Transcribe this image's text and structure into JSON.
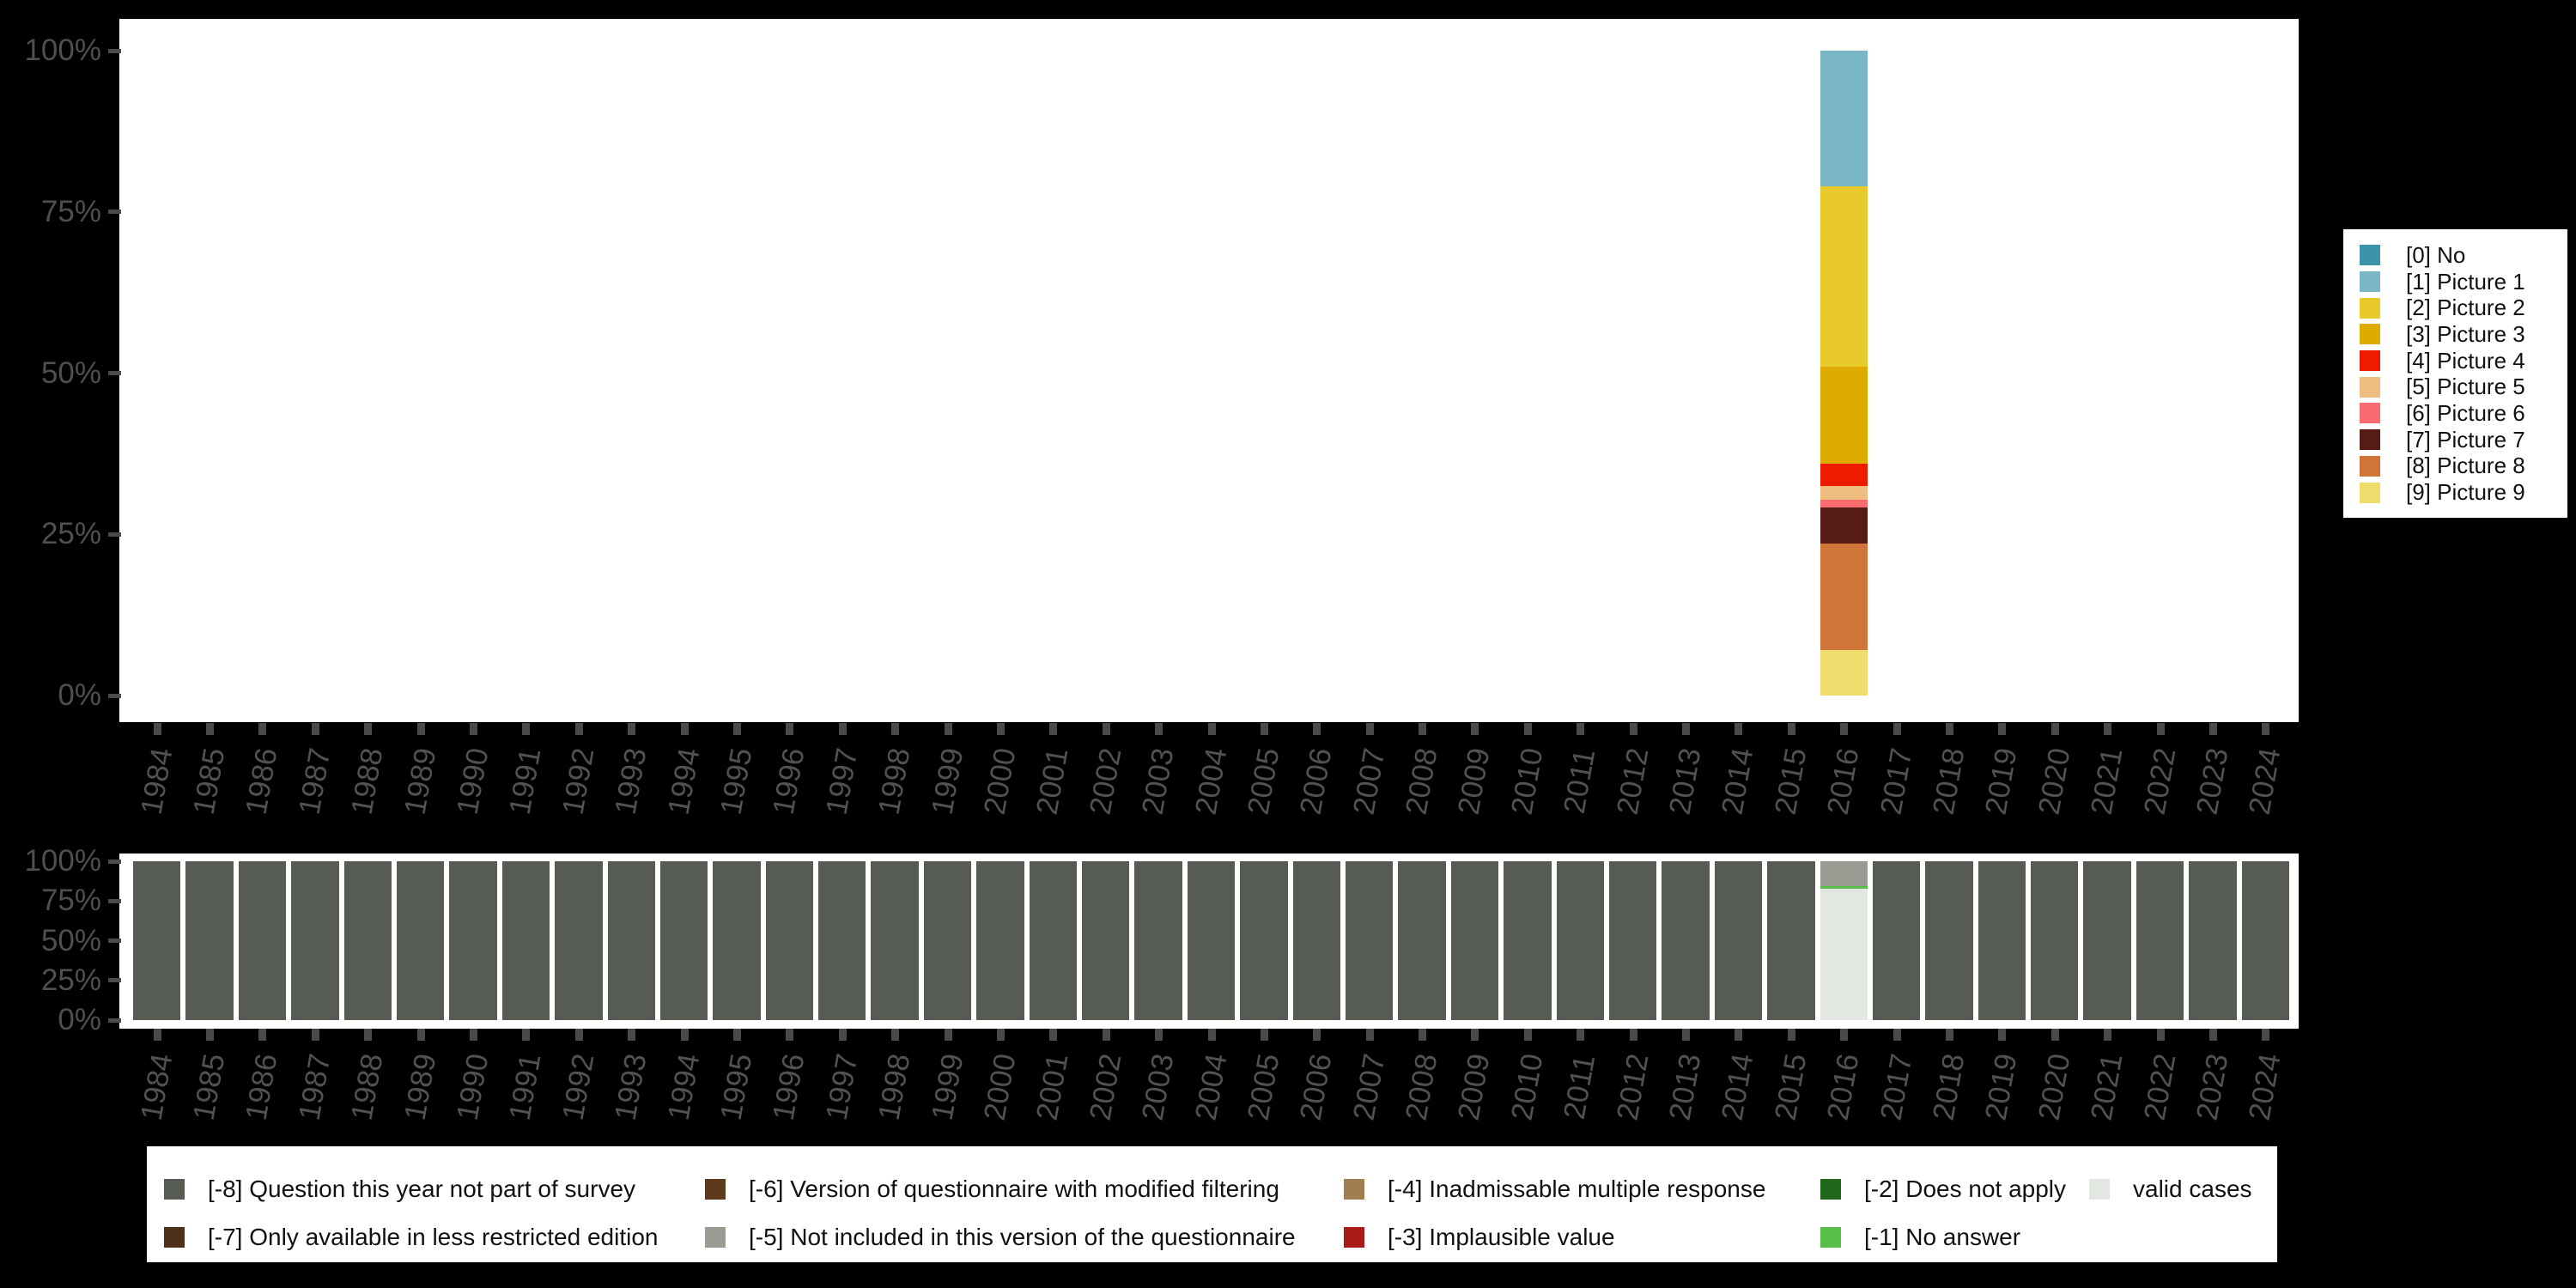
{
  "background_color": "#000000",
  "axis": {
    "label_color": "#4f4f4f",
    "tick_color": "#4a4a4a",
    "y_tick_labels": [
      "100%",
      "75%",
      "50%",
      "25%",
      "0%"
    ],
    "years": [
      "1984",
      "1985",
      "1986",
      "1987",
      "1988",
      "1989",
      "1990",
      "1991",
      "1992",
      "1993",
      "1994",
      "1995",
      "1996",
      "1997",
      "1998",
      "1999",
      "2000",
      "2001",
      "2002",
      "2003",
      "2004",
      "2005",
      "2006",
      "2007",
      "2008",
      "2009",
      "2010",
      "2011",
      "2012",
      "2013",
      "2014",
      "2015",
      "2016",
      "2017",
      "2018",
      "2019",
      "2020",
      "2021",
      "2022",
      "2023",
      "2024"
    ]
  },
  "chart_data": [
    {
      "type": "bar",
      "stacked": true,
      "title": "",
      "xlabel": "",
      "ylabel": "",
      "ylim": [
        0,
        100
      ],
      "grid": false,
      "legend_position": "right",
      "x": [
        "1984",
        "1985",
        "1986",
        "1987",
        "1988",
        "1989",
        "1990",
        "1991",
        "1992",
        "1993",
        "1994",
        "1995",
        "1996",
        "1997",
        "1998",
        "1999",
        "2000",
        "2001",
        "2002",
        "2003",
        "2004",
        "2005",
        "2006",
        "2007",
        "2008",
        "2009",
        "2010",
        "2011",
        "2012",
        "2013",
        "2014",
        "2015",
        "2016",
        "2017",
        "2018",
        "2019",
        "2020",
        "2021",
        "2022",
        "2023",
        "2024"
      ],
      "stack_order_top_to_bottom": [
        "0",
        "1",
        "2",
        "3",
        "4",
        "5",
        "6",
        "7",
        "8",
        "9"
      ],
      "series": [
        {
          "key": "0",
          "name": "[0] No",
          "color": "#3d93ab"
        },
        {
          "key": "1",
          "name": "[1] Picture 1",
          "color": "#79b6c6"
        },
        {
          "key": "2",
          "name": "[2] Picture 2",
          "color": "#e9ca2d"
        },
        {
          "key": "3",
          "name": "[3] Picture 3",
          "color": "#deac00"
        },
        {
          "key": "4",
          "name": "[4] Picture 4",
          "color": "#ee1b00"
        },
        {
          "key": "5",
          "name": "[5] Picture 5",
          "color": "#efbd80"
        },
        {
          "key": "6",
          "name": "[6] Picture 6",
          "color": "#f96b6e"
        },
        {
          "key": "7",
          "name": "[7] Picture 7",
          "color": "#571b16"
        },
        {
          "key": "8",
          "name": "[8] Picture 8",
          "color": "#d0743a"
        },
        {
          "key": "9",
          "name": "[9] Picture 9",
          "color": "#f0dc6c"
        }
      ],
      "default_stack": {},
      "values_by_year": {
        "2016": {
          "1": 21,
          "2": 28,
          "3": 15,
          "4": 3.5,
          "5": 2.2,
          "6": 1.2,
          "7": 5.6,
          "8": 16.5,
          "9": 7
        }
      }
    },
    {
      "type": "bar",
      "stacked": true,
      "title": "",
      "xlabel": "",
      "ylabel": "",
      "ylim": [
        0,
        100
      ],
      "grid": false,
      "legend_position": "bottom",
      "x": [
        "1984",
        "1985",
        "1986",
        "1987",
        "1988",
        "1989",
        "1990",
        "1991",
        "1992",
        "1993",
        "1994",
        "1995",
        "1996",
        "1997",
        "1998",
        "1999",
        "2000",
        "2001",
        "2002",
        "2003",
        "2004",
        "2005",
        "2006",
        "2007",
        "2008",
        "2009",
        "2010",
        "2011",
        "2012",
        "2013",
        "2014",
        "2015",
        "2016",
        "2017",
        "2018",
        "2019",
        "2020",
        "2021",
        "2022",
        "2023",
        "2024"
      ],
      "stack_order_top_to_bottom": [
        "-8",
        "-7",
        "-6",
        "-5",
        "-4",
        "-3",
        "-2",
        "-1",
        "valid"
      ],
      "series": [
        {
          "key": "-8",
          "name": "[-8] Question this year not part of survey",
          "color": "#565c53"
        },
        {
          "key": "-7",
          "name": "[-7] Only available in less restricted edition",
          "color": "#4c3017"
        },
        {
          "key": "-6",
          "name": "[-6] Version of questionnaire with modified filtering",
          "color": "#5d3a1d"
        },
        {
          "key": "-5",
          "name": "[-5] Not included in this version of the questionnaire",
          "color": "#9a9c94"
        },
        {
          "key": "-4",
          "name": "[-4] Inadmissable multiple response",
          "color": "#a07e50"
        },
        {
          "key": "-3",
          "name": "[-3] Implausible value",
          "color": "#a81c17"
        },
        {
          "key": "-2",
          "name": "[-2] Does not apply",
          "color": "#20671c"
        },
        {
          "key": "-1",
          "name": "[-1] No answer",
          "color": "#57bf47"
        },
        {
          "key": "valid",
          "name": "valid cases",
          "color": "#e3e7e1"
        }
      ],
      "default_stack": {
        "-8": 100
      },
      "values_by_year": {
        "2016": {
          "-5": 15.7,
          "-1": 1.6,
          "valid": 82.7
        }
      }
    }
  ],
  "right_legend": {
    "items": [
      {
        "label": "[0] No",
        "color": "#3d93ab"
      },
      {
        "label": "[1] Picture 1",
        "color": "#79b6c6"
      },
      {
        "label": "[2] Picture 2",
        "color": "#e9ca2d"
      },
      {
        "label": "[3] Picture 3",
        "color": "#deac00"
      },
      {
        "label": "[4] Picture 4",
        "color": "#ee1b00"
      },
      {
        "label": "[5] Picture 5",
        "color": "#efbd80"
      },
      {
        "label": "[6] Picture 6",
        "color": "#f96b6e"
      },
      {
        "label": "[7] Picture 7",
        "color": "#571b16"
      },
      {
        "label": "[8] Picture 8",
        "color": "#d0743a"
      },
      {
        "label": "[9] Picture 9",
        "color": "#f0dc6c"
      }
    ]
  },
  "bottom_legend": {
    "rows": [
      [
        {
          "label": "[-8] Question this year not part of survey",
          "color": "#565c53"
        },
        {
          "label": "[-6] Version of questionnaire with modified filtering",
          "color": "#5d3a1d"
        },
        {
          "label": "[-4] Inadmissable multiple response",
          "color": "#a07e50"
        },
        {
          "label": "[-2] Does not apply",
          "color": "#20671c"
        },
        {
          "label": "valid cases",
          "color": "#e3e7e1"
        }
      ],
      [
        {
          "label": "[-7] Only available in less restricted edition",
          "color": "#4c3017"
        },
        {
          "label": "[-5] Not included in this version of the questionnaire",
          "color": "#9a9c94"
        },
        {
          "label": "[-3] Implausible value",
          "color": "#a81c17"
        },
        {
          "label": "[-1] No answer",
          "color": "#57bf47"
        }
      ]
    ]
  }
}
